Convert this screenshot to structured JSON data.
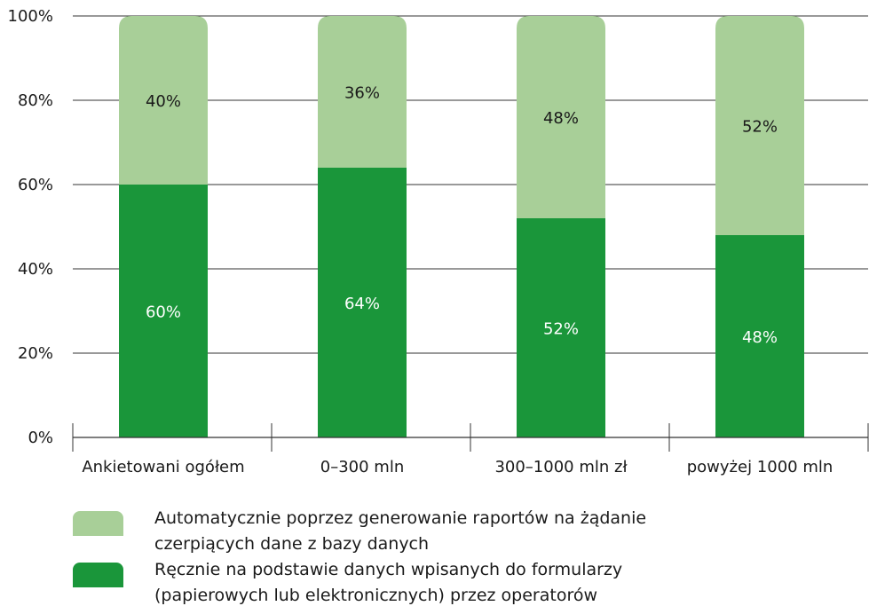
{
  "chart_data": {
    "type": "bar",
    "stacked": true,
    "categories": [
      "Ankietowani ogółem",
      "0–300 mln",
      "300–1000 mln zł",
      "powyżej 1000 mln"
    ],
    "series": [
      {
        "name": "Ręcznie na podstawie danych wpisanych do formularzy (papierowych lub elektronicznych) przez operatorów",
        "values": [
          60,
          64,
          52,
          48
        ],
        "labels": [
          "60%",
          "64%",
          "52%",
          "48%"
        ],
        "color": "#1a963a"
      },
      {
        "name": "Automatycznie poprzez generowanie raportów na żądanie czerpiących dane z bazy danych",
        "values": [
          40,
          36,
          48,
          52
        ],
        "labels": [
          "40%",
          "36%",
          "48%",
          "52%"
        ],
        "color": "#a8cf98"
      }
    ],
    "ylim": [
      0,
      100
    ],
    "yticks": [
      "0%",
      "20%",
      "40%",
      "60%",
      "80%",
      "100%"
    ],
    "grid": true,
    "legend": "bottom"
  },
  "legend": {
    "automatic": "Automatycznie poprzez generowanie raportów na żądanie\nczerpiących dane z bazy danych",
    "manual": "Ręcznie na podstawie danych wpisanych do formularzy\n(papierowych lub elektronicznych) przez operatorów"
  }
}
